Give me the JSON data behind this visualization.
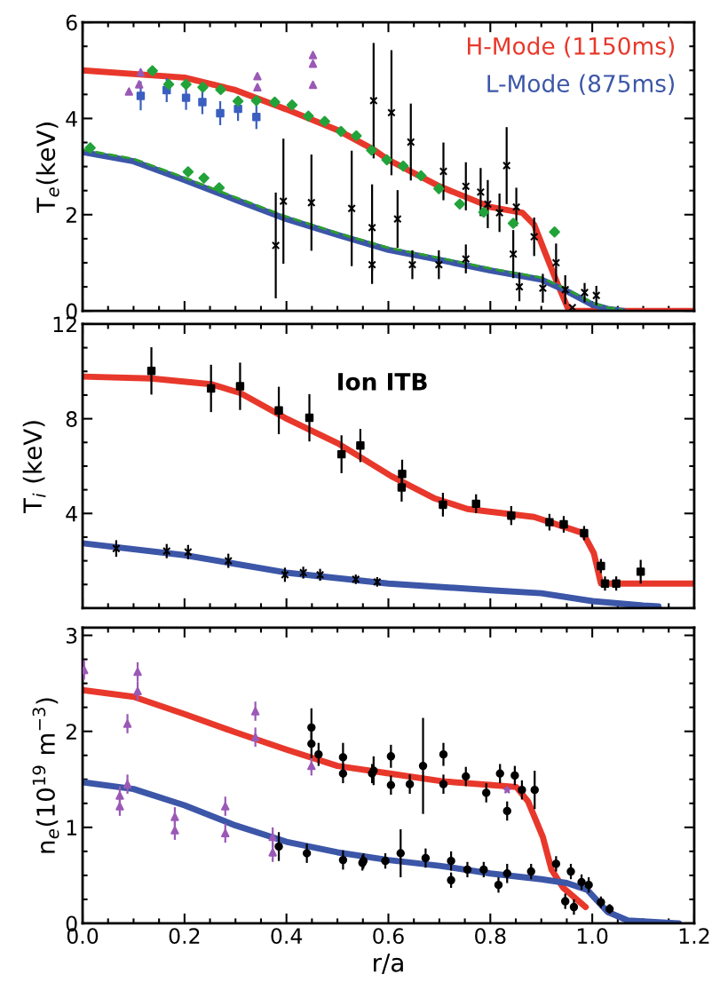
{
  "chart_data": [
    {
      "type": "line",
      "ylabel": "T$_{e}$(keV)",
      "xlim": [
        0,
        1.2
      ],
      "ylim": [
        0,
        6
      ],
      "xticks": [
        0,
        0.2,
        0.4,
        0.6,
        0.8,
        1.0,
        1.2
      ],
      "yticks": [
        0,
        2,
        4,
        6
      ],
      "tick_labels": "y",
      "legend": "top right",
      "series": [
        {
          "name": "H-Mode (1150ms)",
          "color": "#e8382b",
          "line_style": "solid",
          "x": [
            0,
            0.2,
            0.3,
            0.4,
            0.5,
            0.57,
            0.6,
            0.7,
            0.8,
            0.863,
            0.886,
            0.909,
            0.932,
            0.952,
            0.96,
            1.2
          ],
          "values": [
            5.0,
            4.85,
            4.59,
            4.19,
            3.76,
            3.36,
            3.14,
            2.59,
            2.16,
            2.04,
            1.79,
            1.17,
            0.56,
            0.06,
            0.0,
            0.0
          ]
        },
        {
          "name": "L-Mode (875ms)",
          "color": "#3c56a8",
          "line_style": "solid",
          "x": [
            0,
            0.1,
            0.2,
            0.3,
            0.4,
            0.5,
            0.6,
            0.7,
            0.8,
            0.9,
            0.95,
            1.0,
            1.03,
            1.06
          ],
          "values": [
            3.3,
            3.11,
            2.72,
            2.31,
            1.91,
            1.58,
            1.27,
            1.06,
            0.84,
            0.65,
            0.41,
            0.13,
            0.04,
            0.0
          ]
        },
        {
          "color": "#2ca02c",
          "line_style": "dashed",
          "x": [
            0,
            0.1,
            0.2,
            0.3,
            0.4,
            0.5,
            0.6,
            0.7,
            0.8,
            0.9,
            0.95,
            1.0,
            1.03,
            1.06
          ],
          "values": [
            3.35,
            3.16,
            2.77,
            2.36,
            1.96,
            1.62,
            1.31,
            1.1,
            0.88,
            0.69,
            0.45,
            0.17,
            0.07,
            0.02
          ]
        },
        {
          "type": "scatter",
          "marker": "triangle",
          "color": "#9b59b6",
          "x": [
            0.091,
            0.111,
            0.114,
            0.343,
            0.343,
            0.452,
            0.452,
            0.452
          ],
          "values": [
            4.56,
            4.71,
            4.96,
            4.88,
            4.65,
            5.32,
            5.14,
            4.7
          ]
        },
        {
          "type": "scatter",
          "marker": "square",
          "color": "#3b5fc0",
          "x": [
            0.114,
            0.165,
            0.203,
            0.235,
            0.27,
            0.305,
            0.341
          ],
          "values": [
            4.47,
            4.59,
            4.43,
            4.34,
            4.11,
            4.2,
            4.03
          ],
          "errors": [
            0.3,
            0.25,
            0.25,
            0.25,
            0.25,
            0.25,
            0.25
          ]
        },
        {
          "type": "scatter",
          "marker": "diamond",
          "color": "#22a33a",
          "x": [
            0.137,
            0.169,
            0.203,
            0.236,
            0.271,
            0.305,
            0.341,
            0.377,
            0.411,
            0.443,
            0.475,
            0.507,
            0.537,
            0.567,
            0.597,
            0.629,
            0.664,
            0.699,
            0.74,
            0.787,
            0.845,
            0.926,
            0.015,
            0.207,
            0.238,
            0.268
          ],
          "values": [
            4.99,
            4.71,
            4.71,
            4.65,
            4.6,
            4.36,
            4.37,
            4.34,
            4.28,
            4.05,
            3.94,
            3.73,
            3.64,
            3.34,
            3.14,
            3.01,
            2.81,
            2.54,
            2.22,
            2.05,
            1.82,
            1.64,
            3.39,
            2.89,
            2.76,
            2.56
          ]
        },
        {
          "type": "scatter",
          "marker": "cross",
          "color": "#000000",
          "x": [
            0.571,
            0.606,
            0.644,
            0.708,
            0.752,
            0.781,
            0.795,
            0.818,
            0.832,
            0.851,
            0.886,
            0.929,
            0.947,
            0.961,
            0.379,
            0.394,
            0.449,
            0.528,
            0.568,
            0.568,
            0.618,
            0.647,
            0.699,
            0.752,
            0.845,
            0.857,
            0.903,
            0.985,
            1.008
          ],
          "values": [
            4.37,
            4.12,
            3.51,
            2.9,
            2.59,
            2.47,
            2.22,
            2.04,
            3.02,
            2.16,
            1.54,
            1.0,
            0.44,
            0.07,
            1.36,
            2.28,
            2.25,
            2.13,
            1.73,
            0.96,
            1.91,
            0.96,
            0.96,
            1.08,
            1.18,
            0.5,
            0.47,
            0.38,
            0.32
          ],
          "errors": [
            1.2,
            1.3,
            0.8,
            0.6,
            0.5,
            0.5,
            0.5,
            0.4,
            0.8,
            0.4,
            0.4,
            0.4,
            0.3,
            null,
            1.1,
            1.3,
            1.0,
            1.2,
            0.9,
            0.4,
            0.6,
            0.3,
            0.3,
            0.3,
            0.5,
            0.3,
            0.3,
            0.2,
            0.2
          ]
        }
      ]
    },
    {
      "type": "line",
      "ylabel": "T$_{i}$ (keV)",
      "xlim": [
        0,
        1.2
      ],
      "ylim": [
        0,
        12
      ],
      "xticks": [
        0,
        0.2,
        0.4,
        0.6,
        0.8,
        1.0,
        1.2
      ],
      "yticks": [
        4,
        8,
        12
      ],
      "tick_labels": "y",
      "annotations": [
        "Ion ITB"
      ],
      "series": [
        {
          "color": "#e8382b",
          "line_style": "solid",
          "x": [
            0,
            0.135,
            0.252,
            0.309,
            0.397,
            0.501,
            0.606,
            0.689,
            0.755,
            0.886,
            0.982,
            1.003,
            1.017,
            1.04,
            1.2
          ],
          "values": [
            9.78,
            9.7,
            9.46,
            9.09,
            8.04,
            6.96,
            5.57,
            4.65,
            4.19,
            3.85,
            3.17,
            2.33,
            1.04,
            1.04,
            1.04
          ]
        },
        {
          "color": "#3c56a8",
          "line_style": "solid",
          "x": [
            0,
            0.2,
            0.4,
            0.6,
            0.8,
            0.9,
            1.0,
            1.1,
            1.13
          ],
          "values": [
            2.74,
            2.24,
            1.5,
            1.04,
            0.76,
            0.63,
            0.3,
            0.11,
            0.07
          ]
        },
        {
          "type": "scatter",
          "marker": "square",
          "color": "#000000",
          "x": [
            0.135,
            0.252,
            0.309,
            0.385,
            0.445,
            0.508,
            0.545,
            0.627,
            0.626,
            0.707,
            0.772,
            0.841,
            0.916,
            0.944,
            0.984,
            1.017,
            1.025,
            1.047,
            1.095
          ],
          "values": [
            10.02,
            9.28,
            9.37,
            8.35,
            8.04,
            6.5,
            6.87,
            5.67,
            5.1,
            4.37,
            4.41,
            3.91,
            3.63,
            3.54,
            3.17,
            1.78,
            1.04,
            1.04,
            1.54
          ],
          "errors": [
            1.0,
            1.0,
            1.0,
            1.0,
            1.0,
            0.8,
            0.7,
            0.6,
            0.6,
            0.5,
            0.4,
            0.4,
            0.35,
            0.35,
            0.3,
            0.3,
            0.3,
            0.3,
            0.5
          ]
        },
        {
          "type": "scatter",
          "marker": "cross",
          "color": "#000000",
          "x": [
            0.066,
            0.165,
            0.207,
            0.286,
            0.397,
            0.433,
            0.466,
            0.536,
            0.578
          ],
          "values": [
            2.52,
            2.41,
            2.37,
            2.0,
            1.41,
            1.5,
            1.41,
            1.22,
            1.11
          ],
          "errors": [
            0.35,
            0.3,
            0.3,
            0.3,
            0.3,
            0.25,
            0.25,
            0.2,
            0.2
          ]
        }
      ]
    },
    {
      "type": "line",
      "xlabel": "r/a",
      "ylabel": "n$_{e}$(10$^{19}$ m$^{−3}$)",
      "xlim": [
        0,
        1.2
      ],
      "ylim": [
        0,
        3.08
      ],
      "xticks": [
        {
          "value": 0,
          "label": "0.0"
        },
        0.2,
        0.4,
        0.6,
        0.8,
        {
          "value": 1.0,
          "label": "1.0"
        },
        1.2
      ],
      "yticks": [
        0,
        1,
        2,
        3
      ],
      "series": [
        {
          "color": "#e8382b",
          "line_style": "solid",
          "x": [
            0,
            0.1,
            0.2,
            0.3,
            0.4,
            0.5,
            0.603,
            0.705,
            0.804,
            0.851,
            0.874,
            0.903,
            0.92,
            0.943,
            0.987
          ],
          "values": [
            2.43,
            2.36,
            2.18,
            1.99,
            1.81,
            1.64,
            1.56,
            1.48,
            1.44,
            1.42,
            1.27,
            0.9,
            0.56,
            0.37,
            0.17
          ]
        },
        {
          "color": "#3c56a8",
          "line_style": "solid",
          "x": [
            0,
            0.1,
            0.2,
            0.3,
            0.4,
            0.5,
            0.6,
            0.7,
            0.8,
            0.9,
            0.95,
            0.99,
            1.03,
            1.07,
            1.17
          ],
          "values": [
            1.47,
            1.4,
            1.23,
            1.02,
            0.85,
            0.74,
            0.66,
            0.6,
            0.52,
            0.46,
            0.42,
            0.35,
            0.12,
            0.03,
            0.0
          ]
        },
        {
          "type": "scatter",
          "marker": "triangle",
          "color": "#9b59b6",
          "x": [
            0.003,
            0.073,
            0.073,
            0.088,
            0.088,
            0.108,
            0.108,
            0.181,
            0.181,
            0.28,
            0.28,
            0.339,
            0.339,
            0.373,
            0.373,
            0.449
          ],
          "values": [
            2.64,
            1.33,
            1.22,
            2.08,
            1.45,
            2.62,
            2.42,
            1.11,
            0.97,
            1.22,
            0.94,
            2.21,
            1.94,
            0.9,
            0.74,
            1.64
          ],
          "errors": [
            0.1,
            0.1,
            0.1,
            0.1,
            0.1,
            0.1,
            0.1,
            0.1,
            0.1,
            0.1,
            0.1,
            0.1,
            0.1,
            0.1,
            0.1,
            0.1
          ]
        },
        {
          "type": "scatter",
          "marker": "star",
          "color": "#9b59b6",
          "x": [
            0.833
          ],
          "values": [
            1.39
          ]
        },
        {
          "type": "scatter",
          "marker": "circle",
          "color": "#000000",
          "x": [
            0.449,
            0.449,
            0.463,
            0.511,
            0.511,
            0.568,
            0.571,
            0.605,
            0.605,
            0.642,
            0.668,
            0.708,
            0.708,
            0.752,
            0.792,
            0.819,
            0.833,
            0.848,
            0.862,
            0.887,
            0.385,
            0.44,
            0.511,
            0.549,
            0.551,
            0.594,
            0.624,
            0.673,
            0.723,
            0.723,
            0.755,
            0.787,
            0.816,
            0.833,
            0.88,
            0.929,
            0.947,
            0.958,
            0.964,
            0.979,
            0.993,
            1.017,
            1.034
          ],
          "values": [
            2.04,
            1.87,
            1.76,
            1.73,
            1.56,
            1.56,
            1.59,
            1.74,
            1.44,
            1.45,
            1.64,
            1.76,
            1.45,
            1.53,
            1.36,
            1.56,
            1.17,
            1.54,
            1.39,
            1.39,
            0.8,
            0.73,
            0.66,
            0.63,
            0.65,
            0.65,
            0.73,
            0.68,
            0.65,
            0.45,
            0.56,
            0.56,
            0.4,
            0.52,
            0.54,
            0.62,
            0.23,
            0.54,
            0.17,
            0.43,
            0.4,
            0.22,
            0.15
          ],
          "errors": [
            0.2,
            0.15,
            0.12,
            0.15,
            0.1,
            0.1,
            0.15,
            0.12,
            0.1,
            0.1,
            0.5,
            0.12,
            0.1,
            0.1,
            0.1,
            0.1,
            0.1,
            0.1,
            0.1,
            0.2,
            0.15,
            0.1,
            0.1,
            0.08,
            0.08,
            0.08,
            0.25,
            0.1,
            0.1,
            0.08,
            0.08,
            0.08,
            0.08,
            0.1,
            0.08,
            0.08,
            0.08,
            0.08,
            0.08,
            0.08,
            0.08,
            0.06,
            0.05
          ]
        }
      ]
    }
  ]
}
